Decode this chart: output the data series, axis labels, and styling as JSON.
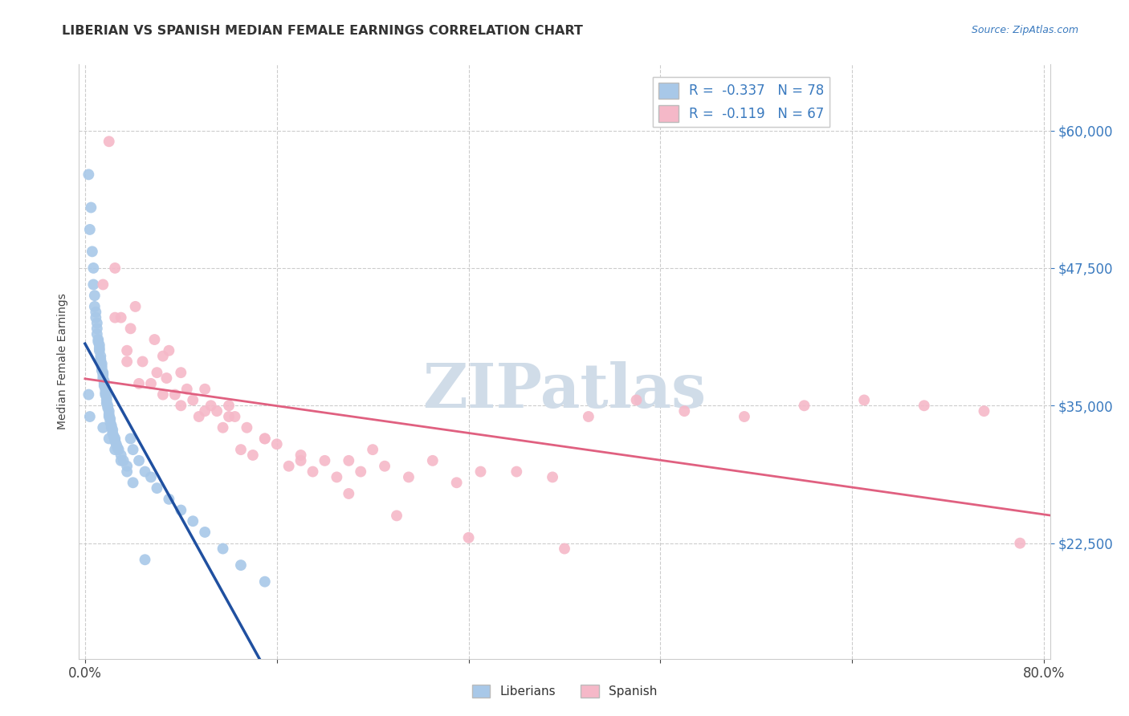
{
  "title": "LIBERIAN VS SPANISH MEDIAN FEMALE EARNINGS CORRELATION CHART",
  "source": "Source: ZipAtlas.com",
  "ylabel": "Median Female Earnings",
  "xlim": [
    -0.005,
    0.805
  ],
  "ylim": [
    12000,
    66000
  ],
  "yticks": [
    22500,
    35000,
    47500,
    60000
  ],
  "ytick_labels": [
    "$22,500",
    "$35,000",
    "$47,500",
    "$60,000"
  ],
  "liberian_color": "#a8c8e8",
  "liberian_line_color": "#2050a0",
  "spanish_color": "#f5b8c8",
  "spanish_line_color": "#e06080",
  "dash_line_color": "#b0b8c8",
  "liberian_R": -0.337,
  "liberian_N": 78,
  "spanish_R": -0.119,
  "spanish_N": 67,
  "watermark": "ZIPatlas",
  "watermark_color": "#d0dce8",
  "liberian_x": [
    0.003,
    0.004,
    0.005,
    0.006,
    0.007,
    0.007,
    0.008,
    0.008,
    0.009,
    0.009,
    0.01,
    0.01,
    0.01,
    0.011,
    0.011,
    0.012,
    0.012,
    0.012,
    0.013,
    0.013,
    0.013,
    0.014,
    0.014,
    0.014,
    0.015,
    0.015,
    0.015,
    0.016,
    0.016,
    0.016,
    0.017,
    0.017,
    0.017,
    0.018,
    0.018,
    0.018,
    0.019,
    0.019,
    0.02,
    0.02,
    0.02,
    0.021,
    0.021,
    0.022,
    0.022,
    0.023,
    0.023,
    0.024,
    0.025,
    0.025,
    0.026,
    0.027,
    0.028,
    0.03,
    0.032,
    0.035,
    0.038,
    0.04,
    0.045,
    0.05,
    0.055,
    0.06,
    0.07,
    0.08,
    0.09,
    0.1,
    0.115,
    0.13,
    0.15,
    0.003,
    0.004,
    0.015,
    0.02,
    0.025,
    0.03,
    0.035,
    0.04,
    0.05
  ],
  "liberian_y": [
    56000,
    51000,
    53000,
    49000,
    47500,
    46000,
    45000,
    44000,
    43500,
    43000,
    42500,
    42000,
    41500,
    41000,
    40800,
    40500,
    40200,
    40000,
    39500,
    39200,
    39000,
    38800,
    38500,
    38200,
    38000,
    37800,
    37500,
    37200,
    37000,
    36800,
    36500,
    36200,
    36000,
    35800,
    35500,
    35200,
    35000,
    34800,
    34500,
    34200,
    34000,
    33800,
    33500,
    33200,
    33000,
    32800,
    32500,
    32200,
    32000,
    31800,
    31500,
    31200,
    31000,
    30500,
    30000,
    29500,
    32000,
    31000,
    30000,
    29000,
    28500,
    27500,
    26500,
    25500,
    24500,
    23500,
    22000,
    20500,
    19000,
    36000,
    34000,
    33000,
    32000,
    31000,
    30000,
    29000,
    28000,
    21000
  ],
  "spanish_x": [
    0.02,
    0.025,
    0.03,
    0.035,
    0.038,
    0.042,
    0.048,
    0.055,
    0.058,
    0.06,
    0.065,
    0.068,
    0.07,
    0.075,
    0.08,
    0.085,
    0.09,
    0.095,
    0.1,
    0.105,
    0.11,
    0.115,
    0.12,
    0.125,
    0.13,
    0.135,
    0.14,
    0.15,
    0.16,
    0.17,
    0.18,
    0.19,
    0.2,
    0.21,
    0.22,
    0.23,
    0.24,
    0.25,
    0.27,
    0.29,
    0.31,
    0.33,
    0.36,
    0.39,
    0.42,
    0.46,
    0.5,
    0.55,
    0.6,
    0.65,
    0.7,
    0.75,
    0.78,
    0.015,
    0.025,
    0.035,
    0.045,
    0.065,
    0.08,
    0.1,
    0.12,
    0.15,
    0.18,
    0.22,
    0.26,
    0.32,
    0.4
  ],
  "spanish_y": [
    59000,
    47500,
    43000,
    40000,
    42000,
    44000,
    39000,
    37000,
    41000,
    38000,
    39500,
    37500,
    40000,
    36000,
    38000,
    36500,
    35500,
    34000,
    36500,
    35000,
    34500,
    33000,
    35000,
    34000,
    31000,
    33000,
    30500,
    32000,
    31500,
    29500,
    30500,
    29000,
    30000,
    28500,
    30000,
    29000,
    31000,
    29500,
    28500,
    30000,
    28000,
    29000,
    29000,
    28500,
    34000,
    35500,
    34500,
    34000,
    35000,
    35500,
    35000,
    34500,
    22500,
    46000,
    43000,
    39000,
    37000,
    36000,
    35000,
    34500,
    34000,
    32000,
    30000,
    27000,
    25000,
    23000,
    22000
  ]
}
